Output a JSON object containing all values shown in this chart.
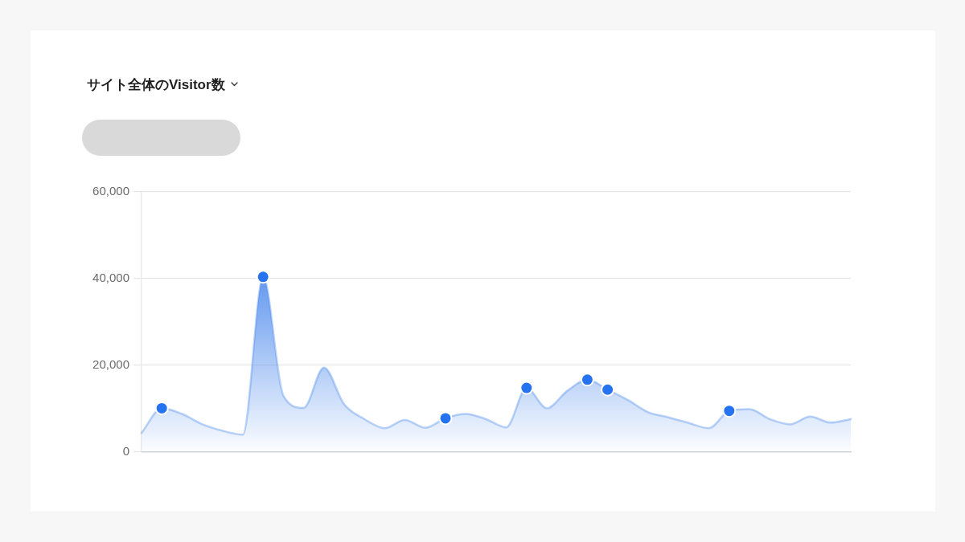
{
  "chart_data": {
    "type": "area",
    "title": "サイト全体のVisitor数",
    "categories": [
      null,
      null,
      null,
      null,
      null,
      null,
      null,
      null,
      null,
      null,
      null,
      null,
      null,
      null,
      null,
      null,
      null,
      null,
      null,
      null,
      null,
      null,
      null,
      null,
      null,
      null,
      null,
      null,
      null,
      null,
      null,
      null,
      null,
      null,
      null,
      null
    ],
    "series": [
      {
        "color": "#5b93ee",
        "values": [
          4400,
          10100,
          8800,
          6400,
          4900,
          4000,
          40400,
          13000,
          10200,
          19500,
          11000,
          7600,
          5500,
          7400,
          5600,
          7800,
          8800,
          7600,
          5700,
          14800,
          10100,
          14100,
          16700,
          14400,
          12000,
          9200,
          8000,
          6700,
          5500,
          9500,
          9900,
          7600,
          6400,
          8200,
          6800,
          7600
        ]
      },
      {
        "type": "scatter",
        "color": "#2673f2",
        "marker": "circle",
        "values": [
          null,
          10100,
          null,
          null,
          null,
          null,
          40400,
          null,
          null,
          null,
          null,
          null,
          null,
          null,
          null,
          7800,
          null,
          null,
          null,
          14800,
          null,
          null,
          16700,
          14400,
          null,
          null,
          null,
          null,
          null,
          9500,
          null,
          null,
          null,
          null,
          null,
          null
        ]
      }
    ],
    "ylim": [
      0,
      60000
    ],
    "yticks": [
      0,
      {
        "value": 20000,
        "label": "20,000"
      },
      {
        "value": 40000,
        "label": "40,000"
      },
      {
        "value": 60000,
        "label": "60,000"
      }
    ],
    "grid": "y",
    "tick_labels": "y"
  }
}
